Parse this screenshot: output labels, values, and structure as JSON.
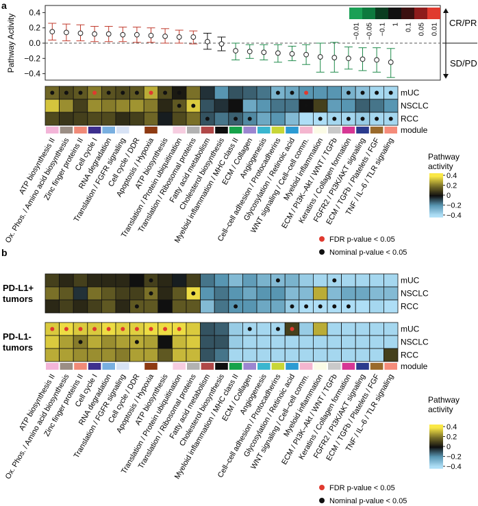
{
  "panels": {
    "a": "a",
    "b": "b"
  },
  "pathways": [
    "ATP biosynthesis II",
    "Ox. Phos. / Amino acid biosynthesis",
    "Zinc finger proteins II",
    "Cell cycle I",
    "RNA degradation",
    "Translation / FGFR signaling",
    "Cell cycle / DDR",
    "Apoptosis / Hypoxia",
    "ATP biosynthesis",
    "Translation / Protein ubiquitination",
    "Translation / Ribosomal proteins",
    "Fatty acid metabolism",
    "Cholesterol biosynthesis",
    "Myeloid inflammation / MHC class II",
    "ECM / Collagen",
    "Angiogenesis",
    "Cell–cell adhesion / Protocadherins",
    "Glycosylation / Retinoic acid",
    "WNT signaling / Cell–cell comm.",
    "Myeloid inflammation",
    "ECM / PI3K–Akt / WNT / TGFb",
    "Keratins / Collagen formation",
    "FGFR2 / PI3K/AKT signaling",
    "ECM / TGFb / Platelets / FGF",
    "TNF / IL–6 / TLR signaling"
  ],
  "module_colors": [
    "#f3b5d8",
    "#9b8e85",
    "#f08a78",
    "#3d2f8e",
    "#79afe0",
    "#d7e2f5",
    "#ffffff",
    "#8e3a12",
    "#ffffff",
    "#f6cde0",
    "#b2b2b2",
    "#b04848",
    "#0e0e0e",
    "#16a34a",
    "#9b86d0",
    "#3ab6cf",
    "#c8d637",
    "#2c9bd3",
    "#f4b6cf",
    "#fbfbe6",
    "#c9c9c9",
    "#d63794",
    "#2b3b8e",
    "#9a6a2c",
    "#f58c7a"
  ],
  "row_labels": {
    "muc": "mUC",
    "nsclc": "NSCLC",
    "rcc": "RCC",
    "module": "module"
  },
  "group_labels": {
    "pos_line1": "PD-L1+",
    "pos_line2": "tumors",
    "neg_line1": "PD-L1-",
    "neg_line2": "tumors"
  },
  "legend": {
    "title_line1": "Pathway",
    "title_line2": "activity",
    "ticks": [
      "0.4",
      "0.2",
      "0",
      "−0.2",
      "−0.4"
    ],
    "fdr_label": "FDR p-value < 0.05",
    "nominal_label": "Nominal p-value < 0.05",
    "fdr_color": "#e03a2f",
    "nominal_color": "#111111"
  },
  "pvalue_key": {
    "labels": [
      "−0.01",
      "−0.05",
      "−0.1",
      "1",
      "0.1",
      "0.05",
      "0.01"
    ],
    "colors": [
      "#1aa055",
      "#0d7a3e",
      "#0a3d20",
      "#111111",
      "#3b1010",
      "#8e1c1c",
      "#e03a2f"
    ]
  },
  "axis": {
    "response_top": "CR/PR",
    "response_bottom": "SD/PD"
  },
  "chart_data": {
    "type": "scatter",
    "title": "",
    "ylabel": "Pathway Activity",
    "ylim": [
      -0.55,
      0.45
    ],
    "yticks": [
      "0.4",
      "0.2",
      "0.0",
      "−0.2",
      "−0.4"
    ],
    "ytick_values": [
      0.4,
      0.2,
      0.0,
      -0.2,
      -0.4
    ],
    "categories_ref": "pathways",
    "means": [
      0.15,
      0.14,
      0.13,
      0.12,
      0.12,
      0.11,
      0.11,
      0.1,
      0.09,
      0.08,
      0.08,
      0.02,
      -0.01,
      -0.1,
      -0.11,
      -0.12,
      -0.13,
      -0.14,
      -0.15,
      -0.18,
      -0.19,
      -0.2,
      -0.21,
      -0.22,
      -0.25
    ],
    "ci_low": [
      0.04,
      0.03,
      0.03,
      0.02,
      0.02,
      0.02,
      0.01,
      0.01,
      0.0,
      0.0,
      -0.01,
      -0.08,
      -0.1,
      -0.22,
      -0.2,
      -0.22,
      -0.25,
      -0.23,
      -0.28,
      -0.38,
      -0.38,
      -0.34,
      -0.36,
      -0.38,
      -0.45
    ],
    "ci_high": [
      0.26,
      0.25,
      0.24,
      0.22,
      0.22,
      0.21,
      0.21,
      0.2,
      0.19,
      0.17,
      0.16,
      0.13,
      0.08,
      0.0,
      -0.02,
      -0.02,
      -0.02,
      -0.04,
      -0.02,
      0.0,
      0.01,
      -0.05,
      -0.06,
      -0.06,
      -0.07
    ],
    "ci_colors": [
      "#c0392b",
      "#c0392b",
      "#c0392b",
      "#c0392b",
      "#c0392b",
      "#c0392b",
      "#c0392b",
      "#c0392b",
      "#c0392b",
      "#c0392b",
      "#c0392b",
      "#111111",
      "#111111",
      "#1e8a4a",
      "#1e8a4a",
      "#1e8a4a",
      "#1e8a4a",
      "#1e8a4a",
      "#1e8a4a",
      "#1e8a4a",
      "#1e8a4a",
      "#1e8a4a",
      "#1e8a4a",
      "#1e8a4a",
      "#1e8a4a"
    ],
    "heatmap_a": {
      "muc": [
        0.18,
        0.12,
        0.15,
        0.22,
        0.14,
        0.12,
        0.15,
        0.3,
        0.12,
        0.02,
        0.2,
        -0.05,
        -0.2,
        -0.1,
        -0.12,
        -0.15,
        -0.28,
        -0.25,
        -0.2,
        -0.2,
        -0.2,
        -0.28,
        -0.32,
        -0.38,
        -0.38
      ],
      "nsclc": [
        0.34,
        0.25,
        0.1,
        0.25,
        0.22,
        0.24,
        0.26,
        0.22,
        0.05,
        0.15,
        0.35,
        -0.1,
        -0.05,
        0.0,
        -0.25,
        -0.2,
        -0.15,
        -0.15,
        0.0,
        0.1,
        -0.22,
        -0.2,
        -0.12,
        -0.15,
        -0.2
      ],
      "rcc": [
        0.12,
        0.08,
        0.1,
        0.12,
        0.12,
        0.06,
        0.1,
        0.18,
        -0.02,
        0.12,
        0.2,
        -0.1,
        -0.15,
        -0.12,
        -0.18,
        -0.25,
        -0.2,
        -0.3,
        -0.4,
        -0.4,
        -0.38,
        -0.38,
        -0.35,
        -0.38,
        -0.38
      ]
    },
    "dots_a": {
      "muc": [
        "n",
        "n",
        "n",
        "f",
        "n",
        "n",
        "n",
        "f",
        "n",
        "n",
        "",
        "",
        "",
        "",
        "",
        "",
        "n",
        "n",
        "f",
        "",
        "",
        "n",
        "n",
        "n",
        "n"
      ],
      "nsclc": [
        "",
        "",
        "",
        "",
        "",
        "",
        "",
        "",
        "",
        "n",
        "n",
        "",
        "",
        "",
        "",
        "",
        "",
        "",
        "n",
        "",
        "",
        "",
        "",
        "",
        ""
      ],
      "rcc": [
        "",
        "",
        "",
        "",
        "",
        "",
        "",
        "",
        "",
        "",
        "",
        "n",
        "",
        "n",
        "n",
        "",
        "",
        "",
        "",
        "n",
        "n",
        "n",
        "n",
        "n",
        "n"
      ]
    },
    "heatmap_b_pos": {
      "muc": [
        0.1,
        0.05,
        0.1,
        0.05,
        0.05,
        0.05,
        0.0,
        0.1,
        0.05,
        -0.02,
        0.1,
        -0.15,
        -0.2,
        -0.3,
        -0.22,
        -0.28,
        -0.3,
        -0.28,
        -0.35,
        -0.38,
        -0.38,
        -0.38,
        -0.38,
        -0.38,
        -0.38
      ],
      "nsclc": [
        0.2,
        0.15,
        -0.05,
        0.2,
        0.15,
        0.1,
        0.1,
        0.2,
        0.05,
        0.15,
        0.38,
        -0.2,
        -0.15,
        -0.2,
        -0.25,
        -0.2,
        -0.2,
        -0.3,
        -0.3,
        0.3,
        -0.3,
        -0.25,
        -0.25,
        -0.3,
        -0.3
      ],
      "rcc": [
        0.05,
        0.1,
        0.05,
        0.1,
        0.15,
        0.05,
        0.15,
        0.15,
        0.0,
        0.15,
        0.15,
        -0.3,
        -0.15,
        -0.2,
        -0.2,
        -0.25,
        -0.25,
        -0.35,
        -0.4,
        -0.4,
        -0.4,
        -0.4,
        -0.4,
        -0.38,
        -0.4
      ]
    },
    "dots_b_pos": {
      "muc": [
        "",
        "",
        "",
        "",
        "",
        "",
        "",
        "n",
        "",
        "",
        "",
        "",
        "",
        "",
        "",
        "",
        "n",
        "",
        "",
        "",
        "n",
        "",
        "",
        "",
        ""
      ],
      "nsclc": [
        "",
        "",
        "",
        "",
        "",
        "",
        "",
        "n",
        "",
        "",
        "n",
        "",
        "",
        "",
        "",
        "",
        "",
        "",
        "",
        "",
        "",
        "",
        "",
        "",
        ""
      ],
      "rcc": [
        "",
        "",
        "",
        "",
        "",
        "",
        "n",
        "",
        "",
        "",
        "",
        "",
        "",
        "n",
        "",
        "",
        "",
        "n",
        "n",
        "n",
        "n",
        "n",
        "",
        "",
        ""
      ]
    },
    "heatmap_b_neg": {
      "muc": [
        0.35,
        0.38,
        0.35,
        0.35,
        0.38,
        0.36,
        0.36,
        0.38,
        0.38,
        0.38,
        0.35,
        -0.1,
        -0.12,
        -0.35,
        -0.38,
        -0.38,
        -0.38,
        0.1,
        -0.35,
        0.3,
        -0.38,
        -0.38,
        -0.38,
        -0.38,
        -0.38
      ],
      "nsclc": [
        0.35,
        0.28,
        0.22,
        0.3,
        0.25,
        0.28,
        0.3,
        0.28,
        0.0,
        0.32,
        0.35,
        -0.1,
        -0.1,
        -0.35,
        -0.38,
        -0.38,
        -0.38,
        -0.38,
        -0.38,
        -0.38,
        -0.38,
        -0.38,
        -0.38,
        -0.38,
        -0.38
      ],
      "rcc": [
        0.3,
        0.28,
        0.25,
        0.25,
        0.25,
        0.22,
        0.28,
        0.28,
        0.15,
        0.32,
        0.32,
        -0.1,
        -0.15,
        -0.38,
        -0.38,
        -0.38,
        -0.38,
        -0.38,
        -0.38,
        -0.38,
        -0.38,
        -0.38,
        -0.38,
        -0.38,
        0.1
      ]
    },
    "dots_b_neg": {
      "muc": [
        "f",
        "f",
        "f",
        "f",
        "f",
        "f",
        "f",
        "f",
        "f",
        "f",
        "",
        "",
        "",
        "",
        "n",
        "",
        "n",
        "f",
        "",
        "",
        "",
        "",
        "",
        "",
        ""
      ],
      "nsclc": [
        "",
        "",
        "n",
        "",
        "",
        "",
        "n",
        "",
        "",
        "",
        "",
        "",
        "",
        "",
        "",
        "",
        "",
        "",
        "",
        "",
        "",
        "",
        "",
        "",
        ""
      ],
      "rcc": [
        "",
        "",
        "",
        "",
        "",
        "",
        "",
        "",
        "",
        "",
        "",
        "",
        "",
        "",
        "",
        "",
        "",
        "",
        "",
        "",
        "",
        "",
        "",
        "",
        ""
      ]
    }
  }
}
